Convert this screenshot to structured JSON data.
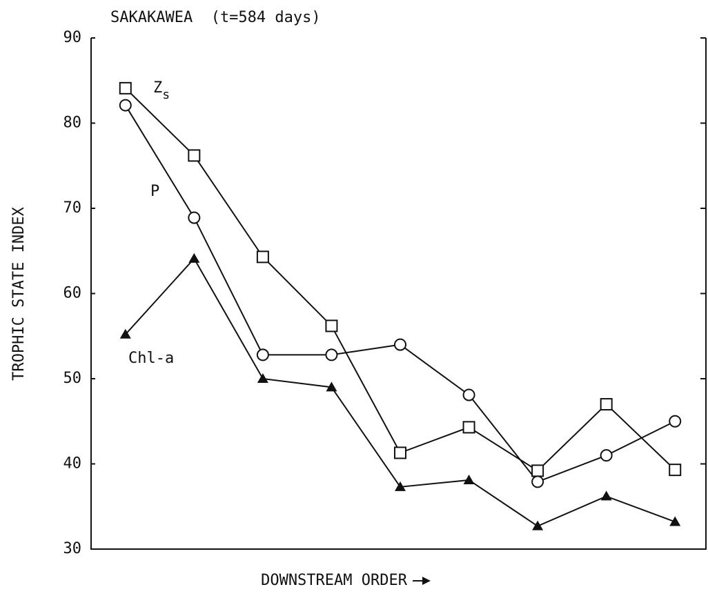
{
  "chart_data": {
    "type": "line",
    "title": "SAKAKAWEA  (t=584 days)",
    "y_label": "TROPHIC STATE INDEX",
    "x_label": "DOWNSTREAM ORDER",
    "categories": [
      null,
      null,
      null,
      null,
      null,
      null,
      null,
      null,
      null
    ],
    "series": [
      {
        "name": "Zs",
        "color": "#111111",
        "marker": "square",
        "values": [
          84.1,
          76.2,
          64.3,
          56.2,
          41.3,
          44.3,
          39.2,
          47.0,
          39.3
        ]
      },
      {
        "name": "P",
        "color": "#111111",
        "marker": "circle",
        "values": [
          82.1,
          68.9,
          52.8,
          52.8,
          54.0,
          48.1,
          37.9,
          41.0,
          45.0
        ]
      },
      {
        "name": "Chl-a",
        "color": "#111111",
        "marker": "triangle",
        "values": [
          55.2,
          64.1,
          50.0,
          49.0,
          37.3,
          38.1,
          32.7,
          36.2,
          33.2
        ]
      }
    ],
    "ylim": [
      30,
      90
    ],
    "yticks": [
      30,
      40,
      50,
      60,
      70,
      80,
      90
    ],
    "grid": false
  }
}
